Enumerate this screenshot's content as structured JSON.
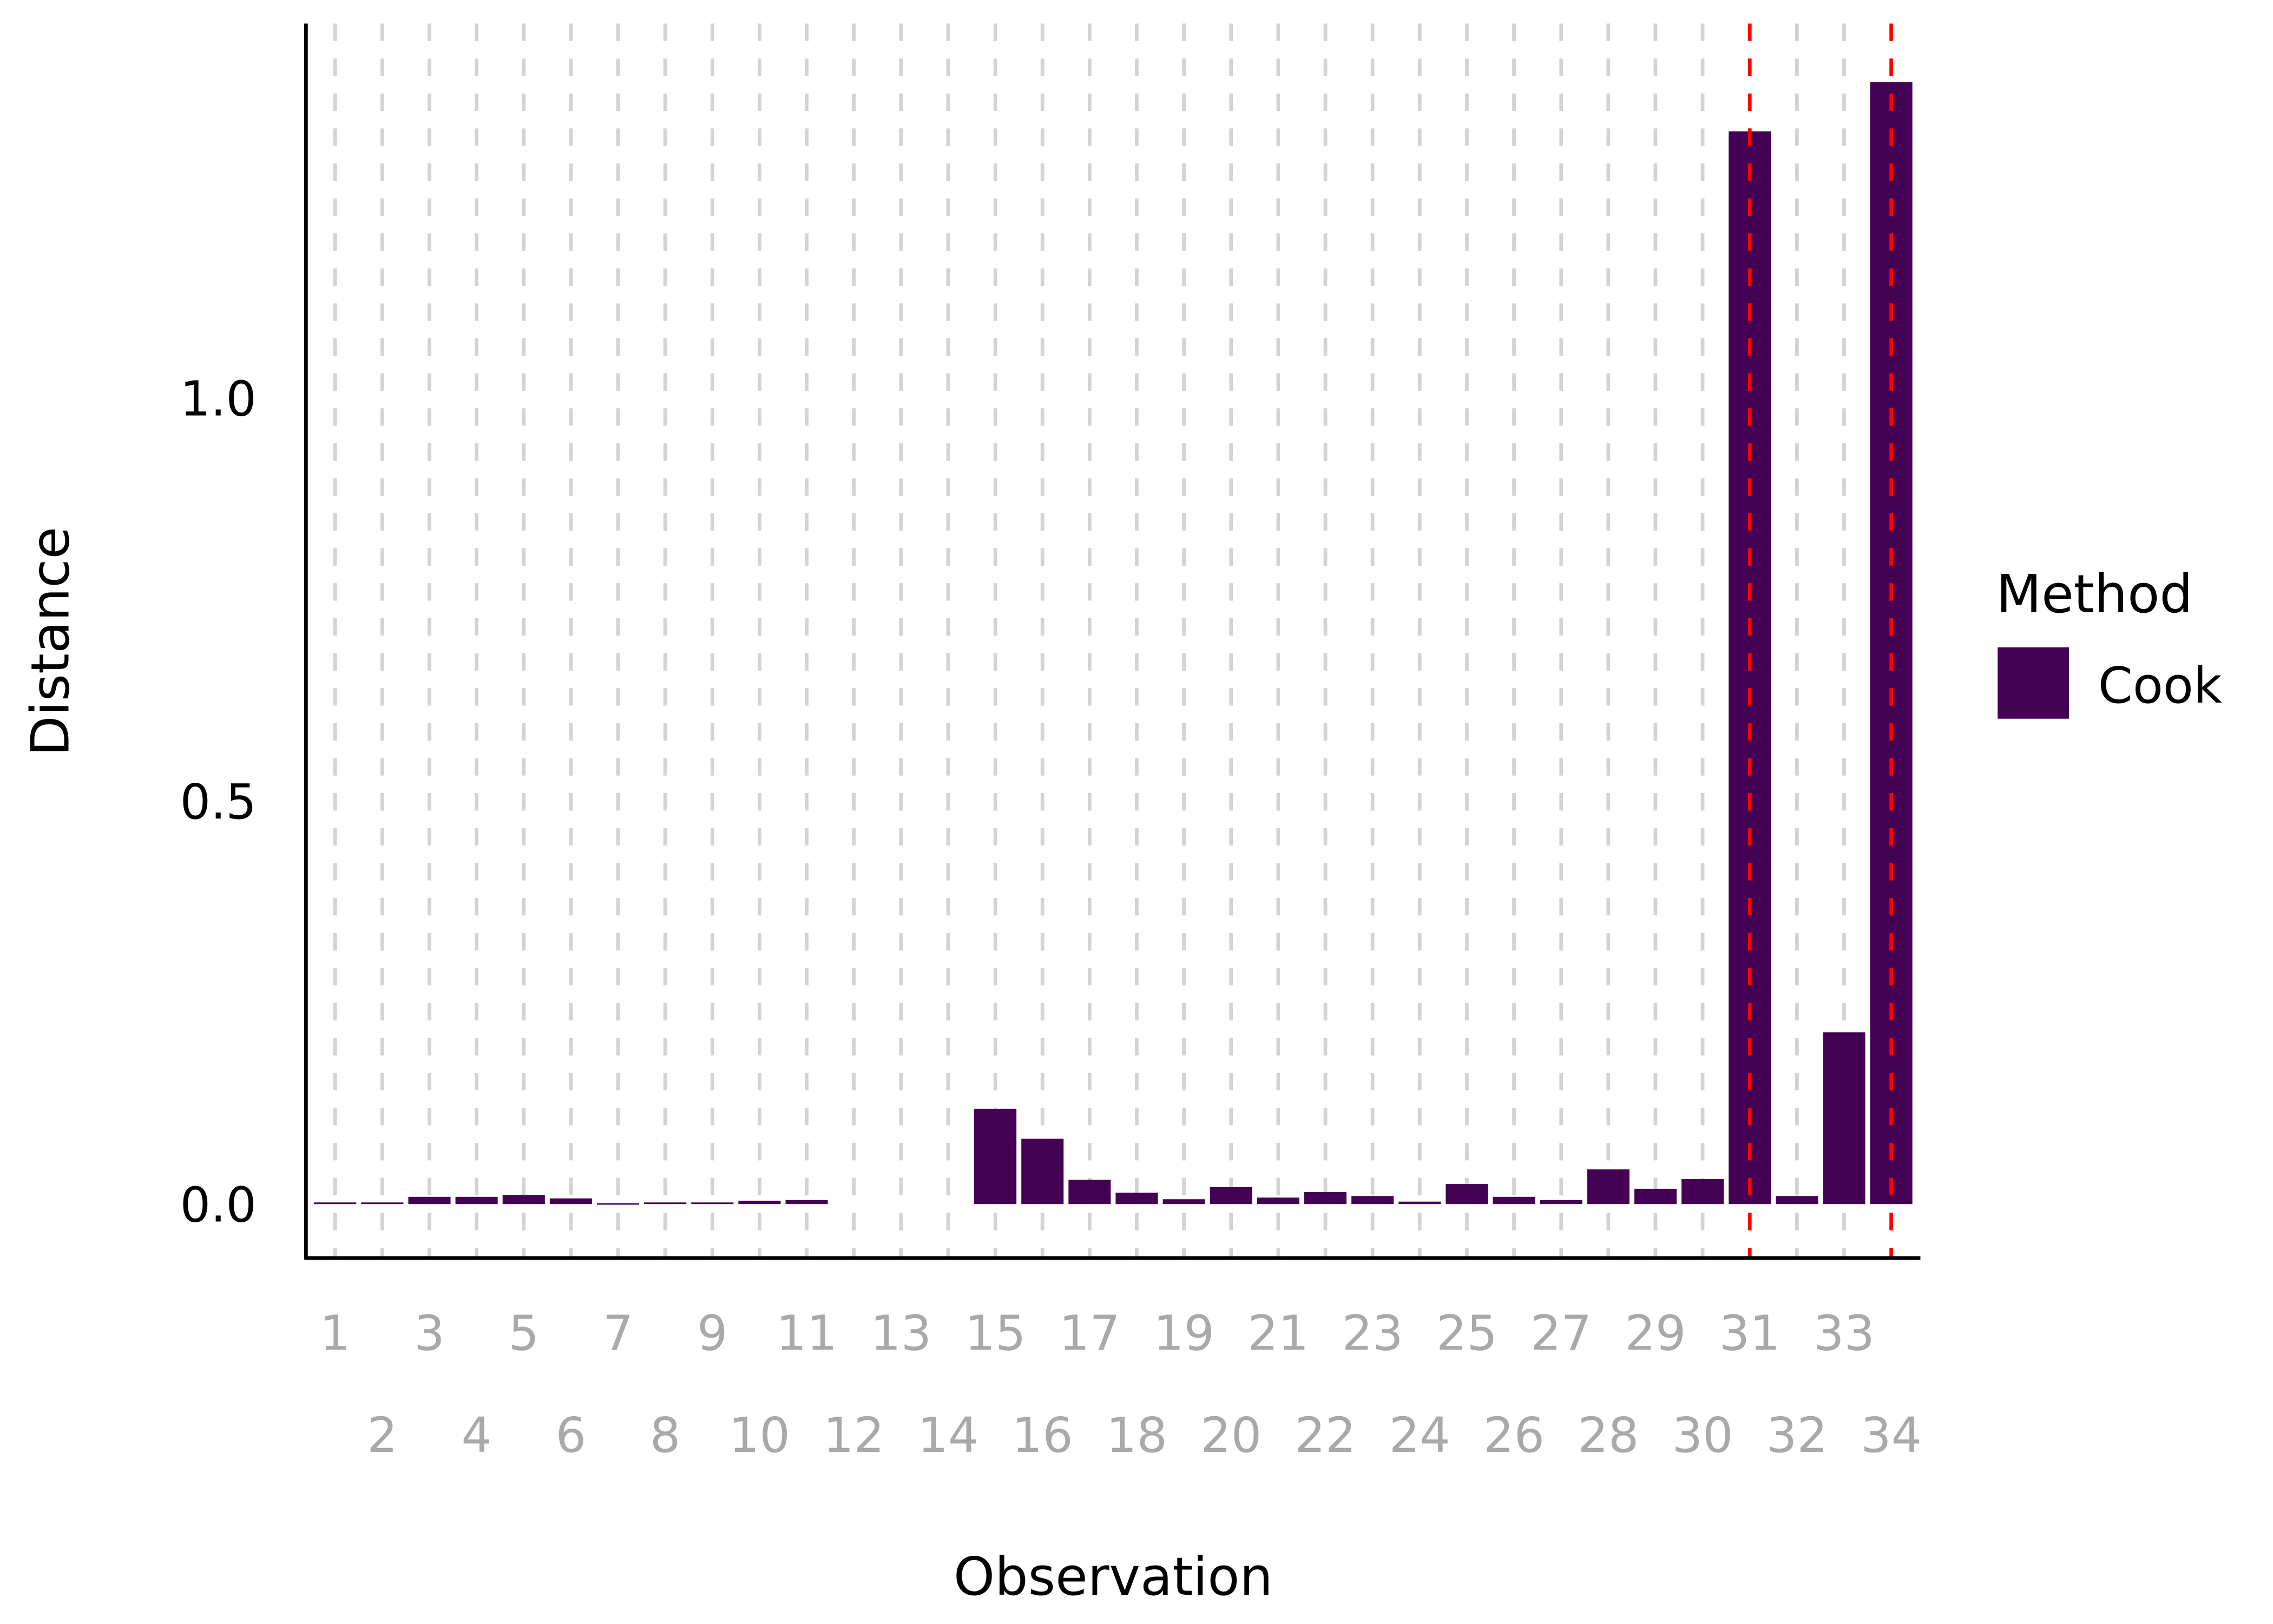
{
  "chart_data": {
    "type": "bar",
    "title": "",
    "xlabel": "Observation",
    "ylabel": "Distance",
    "categories": [
      "1",
      "2",
      "3",
      "4",
      "5",
      "6",
      "7",
      "8",
      "9",
      "10",
      "11",
      "12",
      "13",
      "14",
      "15",
      "16",
      "17",
      "18",
      "19",
      "20",
      "21",
      "22",
      "23",
      "24",
      "25",
      "26",
      "27",
      "28",
      "29",
      "30",
      "31",
      "32",
      "33",
      "34"
    ],
    "series": [
      {
        "name": "Cook",
        "color": "#440154",
        "values": [
          0.002,
          0.002,
          0.009,
          0.009,
          0.011,
          0.007,
          0.001,
          0.002,
          0.002,
          0.004,
          0.005,
          null,
          null,
          null,
          0.118,
          0.081,
          0.03,
          0.014,
          0.006,
          0.021,
          0.008,
          0.015,
          0.01,
          0.003,
          0.025,
          0.009,
          0.005,
          0.043,
          0.019,
          0.031,
          1.331,
          0.01,
          0.213,
          1.392
        ]
      }
    ],
    "ylim": [
      -0.07,
      1.46
    ],
    "yticks": [
      0.0,
      0.5,
      1.0
    ],
    "ytick_labels": [
      "0.0",
      "0.5",
      "1.0"
    ],
    "highlight_lines": {
      "categories": [
        "31",
        "34"
      ],
      "color": "#ff0000",
      "style": "dashed"
    },
    "grid": "vertical dashed at each category",
    "legend": {
      "title": "Method",
      "entries": [
        "Cook"
      ],
      "placement": "right"
    }
  }
}
